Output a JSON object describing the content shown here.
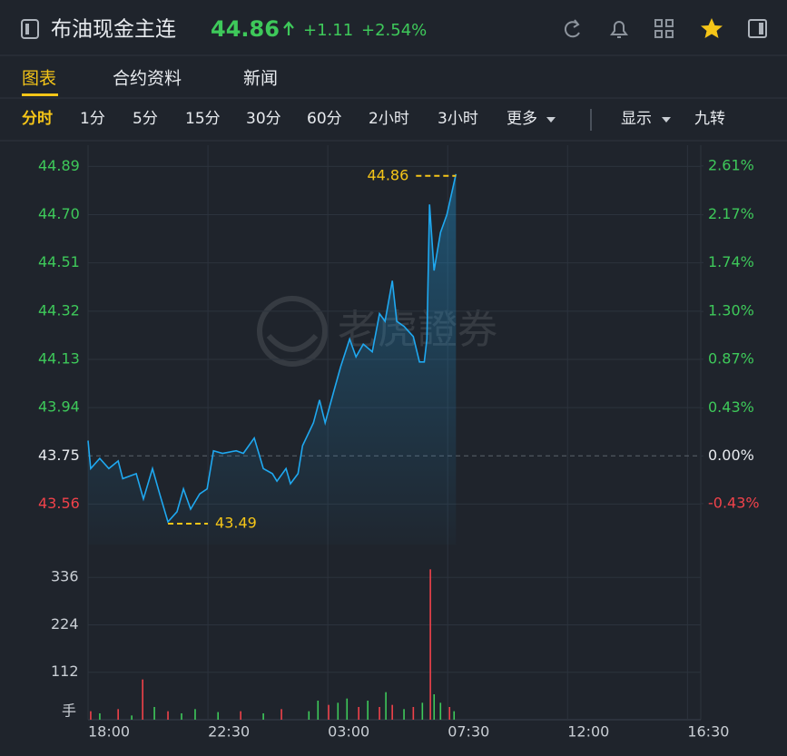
{
  "header": {
    "title": "布油现金主连",
    "price": "44.86",
    "change": "+1.11",
    "change_pct": "+2.54%"
  },
  "tabs": [
    "图表",
    "合约资料",
    "新闻"
  ],
  "timeframes": [
    "分时",
    "1分",
    "5分",
    "15分",
    "30分",
    "60分",
    "2小时",
    "3小时",
    "更多"
  ],
  "options": [
    "显示",
    "九转"
  ],
  "chart_data": {
    "type": "line",
    "watermark": "老虎證券",
    "color": "#1fa8f0",
    "up_color": "#3ec95a",
    "down_color": "#f0424a",
    "annotation_color": "#f5c518",
    "grid": true,
    "x": [
      0,
      0.1,
      0.44,
      0.78,
      1.13,
      1.3,
      1.81,
      2.08,
      2.42,
      2.69,
      3.0,
      3.34,
      3.58,
      3.85,
      4.19,
      4.47,
      4.71,
      5.05,
      5.56,
      5.83,
      6.24,
      6.58,
      6.92,
      7.09,
      7.43,
      7.6,
      7.88,
      8.05,
      8.46,
      8.69,
      8.9,
      9.24,
      9.48,
      9.82,
      10.06,
      10.33,
      10.67,
      10.94,
      11.15,
      11.42,
      11.59,
      11.86,
      12.21,
      12.44,
      12.62,
      12.72,
      12.82,
      12.99,
      13.23,
      13.47,
      13.64,
      13.81
    ],
    "values": [
      43.81,
      43.7,
      43.74,
      43.7,
      43.73,
      43.66,
      43.68,
      43.58,
      43.7,
      43.6,
      43.49,
      43.53,
      43.62,
      43.54,
      43.6,
      43.62,
      43.77,
      43.76,
      43.77,
      43.76,
      43.82,
      43.7,
      43.68,
      43.65,
      43.7,
      43.64,
      43.68,
      43.79,
      43.88,
      43.97,
      43.88,
      44.01,
      44.1,
      44.21,
      44.14,
      44.19,
      44.16,
      44.31,
      44.28,
      44.44,
      44.28,
      44.26,
      44.22,
      44.12,
      44.12,
      44.21,
      44.74,
      44.48,
      44.63,
      44.7,
      44.78,
      44.86
    ],
    "xlim": [
      0,
      23
    ],
    "xticks": [
      {
        "value": 0,
        "label": "18:00"
      },
      {
        "value": 4.5,
        "label": "22:30"
      },
      {
        "value": 9,
        "label": "03:00"
      },
      {
        "value": 13.5,
        "label": "07:30"
      },
      {
        "value": 18,
        "label": "12:00"
      },
      {
        "value": 22.5,
        "label": "16:30"
      }
    ],
    "ylim": [
      43.49,
      44.92
    ],
    "yticks": [
      44.89,
      {
        "value": 44.7,
        "label": "44.70"
      },
      44.51,
      44.32,
      44.13,
      43.94,
      43.75,
      43.56
    ],
    "reference_line": 43.75,
    "y2lim": [
      -0.594,
      2.674
    ],
    "y2ticks": [
      {
        "value": 2.61,
        "label": "2.61%"
      },
      {
        "value": 2.17,
        "label": "2.17%"
      },
      {
        "value": 1.74,
        "label": "1.74%"
      },
      {
        "value": 1.3,
        "label": "1.30%"
      },
      {
        "value": 0.87,
        "label": "0.87%"
      },
      {
        "value": 0.43,
        "label": "0.43%"
      },
      {
        "value": 0,
        "label": "0.00%"
      },
      {
        "value": -0.43,
        "label": "-0.43%"
      }
    ],
    "annotations": [
      {
        "x": 13.81,
        "value": 44.86
      },
      {
        "x": 3.0,
        "value": 43.49
      }
    ],
    "volume": {
      "unit": "手",
      "ylim": [
        0,
        360
      ],
      "yticks": [
        112,
        224,
        336
      ],
      "x": [
        0.1,
        0.44,
        1.13,
        1.64,
        2.05,
        2.49,
        3.0,
        3.51,
        4.02,
        4.88,
        5.73,
        6.58,
        7.26,
        8.29,
        8.63,
        9.03,
        9.38,
        9.72,
        10.16,
        10.5,
        10.94,
        11.18,
        11.42,
        11.86,
        12.21,
        12.55,
        12.85,
        12.99,
        13.23,
        13.57,
        13.74
      ],
      "values": [
        20,
        15,
        25,
        10,
        95,
        30,
        20,
        15,
        25,
        18,
        20,
        15,
        25,
        20,
        45,
        35,
        40,
        50,
        30,
        45,
        30,
        65,
        35,
        25,
        30,
        40,
        355,
        60,
        40,
        30,
        20
      ],
      "colors": [
        "#f0424a",
        "#3ec95a",
        "#f0424a",
        "#3ec95a",
        "#f0424a",
        "#3ec95a",
        "#f0424a",
        "#3ec95a",
        "#3ec95a",
        "#3ec95a",
        "#f0424a",
        "#3ec95a",
        "#f0424a",
        "#3ec95a",
        "#3ec95a",
        "#f0424a",
        "#3ec95a",
        "#3ec95a",
        "#f0424a",
        "#3ec95a",
        "#f0424a",
        "#3ec95a",
        "#f0424a",
        "#3ec95a",
        "#f0424a",
        "#3ec95a",
        "#f0424a",
        "#3ec95a",
        "#3ec95a",
        "#f0424a",
        "#3ec95a"
      ]
    }
  }
}
